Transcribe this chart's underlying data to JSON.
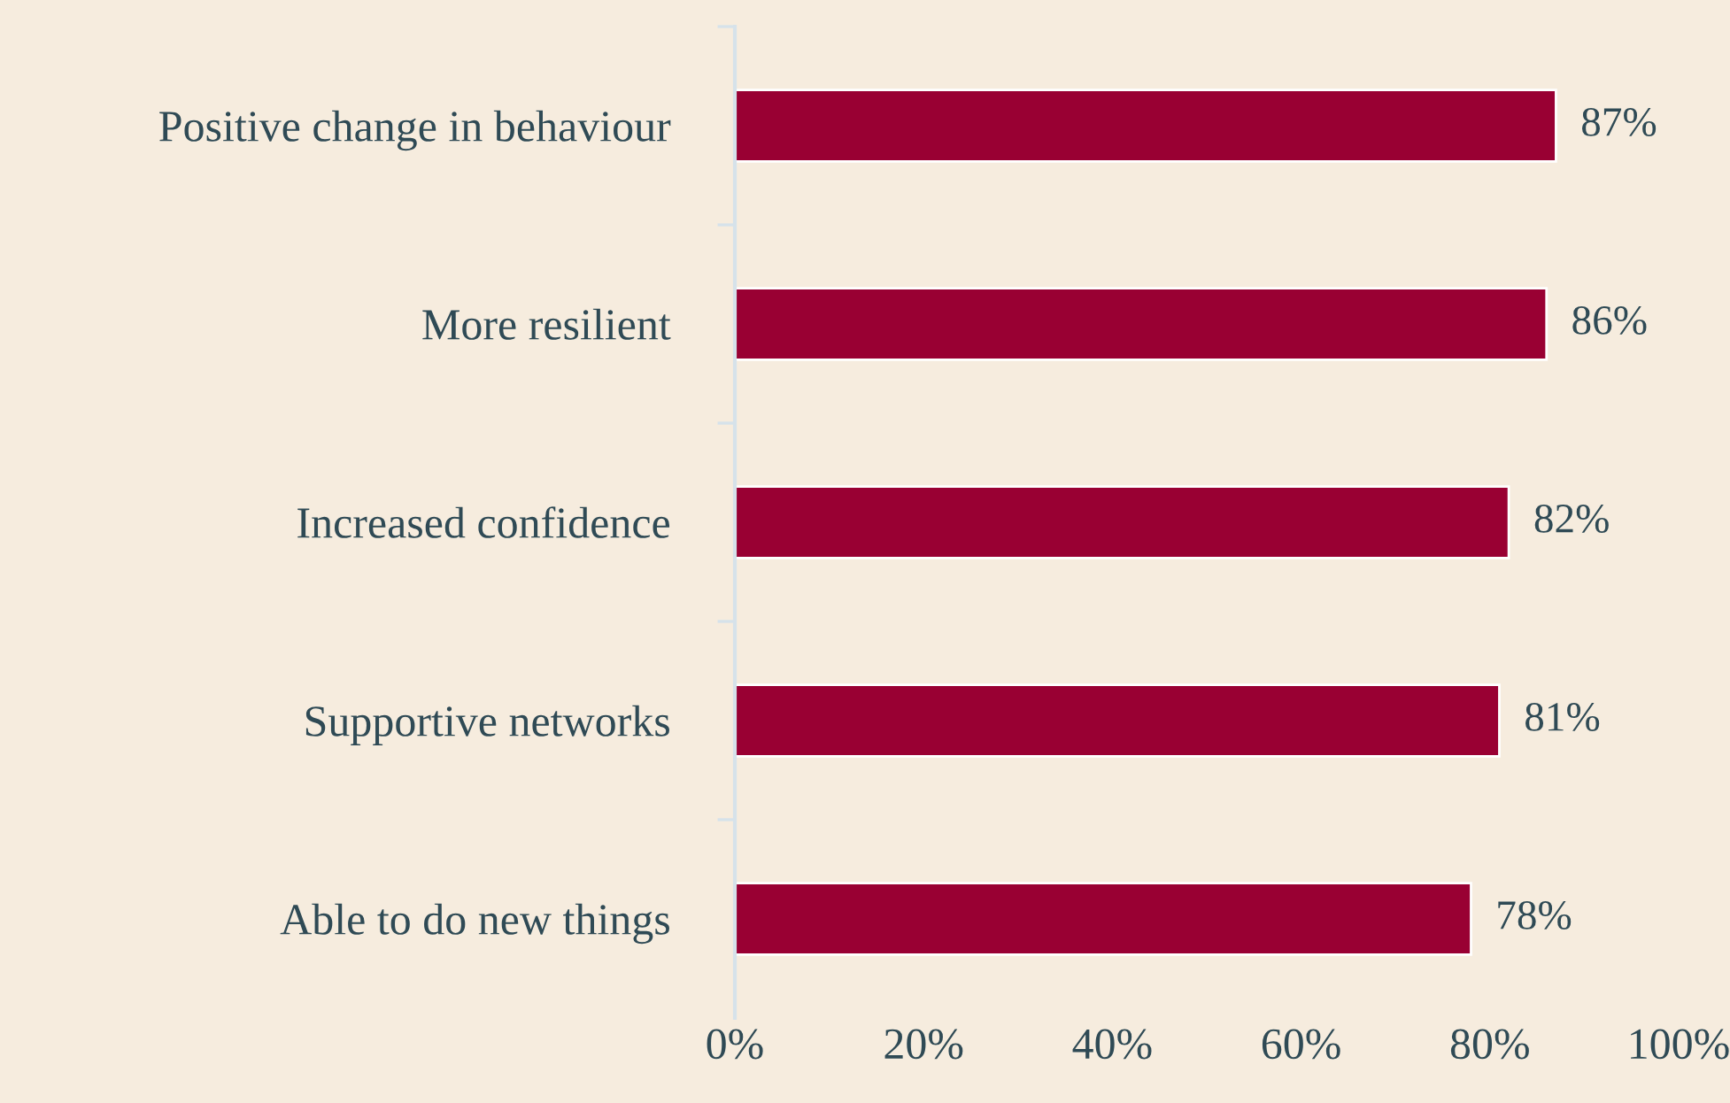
{
  "chart_data": {
    "type": "bar",
    "orientation": "horizontal",
    "categories": [
      "Positive change in behaviour",
      "More resilient",
      "Increased confidence",
      "Supportive networks",
      "Able to do new things"
    ],
    "values": [
      87,
      86,
      82,
      81,
      78
    ],
    "value_labels": [
      "87%",
      "86%",
      "82%",
      "81%",
      "78%"
    ],
    "color": "#990033",
    "xlim": [
      0,
      100
    ],
    "xticks": [
      {
        "value": 0,
        "label": "0%"
      },
      {
        "value": 20,
        "label": "20%"
      },
      {
        "value": 40,
        "label": "40%"
      },
      {
        "value": 60,
        "label": "60%"
      },
      {
        "value": 80,
        "label": "80%"
      },
      {
        "value": 100,
        "label": "100%"
      }
    ],
    "grid": false,
    "legend": false
  }
}
